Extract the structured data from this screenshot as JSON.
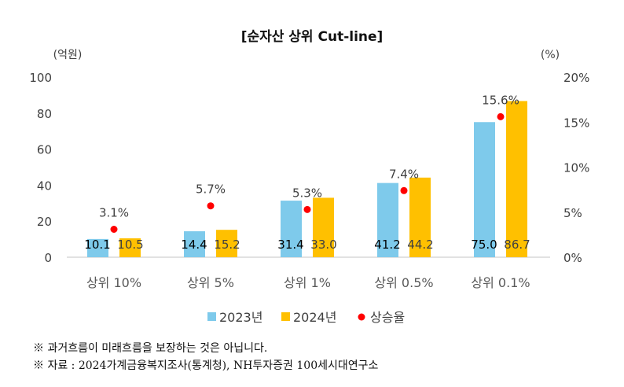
{
  "chart_data": {
    "type": "bar",
    "title": "[순자산 상위 Cut-line]",
    "ylabel": "(억원)",
    "y2label": "(%)",
    "ylim": [
      0,
      100
    ],
    "y2lim": [
      0,
      20
    ],
    "yticks": [
      "0",
      "20",
      "40",
      "60",
      "80",
      "100"
    ],
    "y2ticks": [
      "0%",
      "5%",
      "10%",
      "15%",
      "20%"
    ],
    "categories": [
      "상위 10%",
      "상위 5%",
      "상위 1%",
      "상위 0.5%",
      "상위 0.1%"
    ],
    "series": [
      {
        "name": "2023년",
        "type": "bar",
        "color": "#7ECAEB",
        "values": [
          10.1,
          14.4,
          31.4,
          41.2,
          75.0
        ],
        "labels": [
          "10.1",
          "14.4",
          "31.4",
          "41.2",
          "75.0"
        ]
      },
      {
        "name": "2024년",
        "type": "bar",
        "color": "#FFC000",
        "values": [
          10.5,
          15.2,
          33.0,
          44.2,
          86.7
        ],
        "labels": [
          "10.5",
          "15.2",
          "33.0",
          "44.2",
          "86.7"
        ]
      },
      {
        "name": "상승율",
        "type": "scatter",
        "axis": "right",
        "color": "#FF0000",
        "values": [
          3.1,
          5.7,
          5.3,
          7.4,
          15.6
        ],
        "labels": [
          "3.1%",
          "5.7%",
          "5.3%",
          "7.4%",
          "15.6%"
        ]
      }
    ],
    "legend": "bottom",
    "grid": false
  },
  "notes": [
    "※ 과거흐름이 미래흐름을 보장하는 것은 아닙니다.",
    "※ 자료 : 2024가계금융복지조사(통계청), NH투자증권 100세시대연구소"
  ]
}
